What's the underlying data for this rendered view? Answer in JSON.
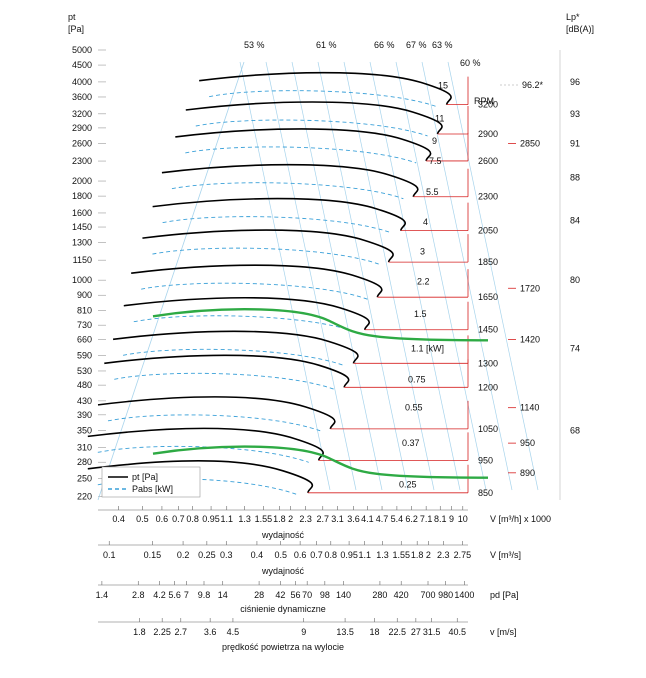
{
  "chart_data": {
    "type": "line",
    "title": "",
    "left_axis": {
      "unit_line1": "pt",
      "unit_line2": "[Pa]",
      "ticks": [
        "5000",
        "4500",
        "4000",
        "3600",
        "3200",
        "2900",
        "2600",
        "2300",
        "2000",
        "1800",
        "1600",
        "1450",
        "1300",
        "1150",
        "1000",
        "900",
        "810",
        "730",
        "660",
        "590",
        "530",
        "480",
        "430",
        "390",
        "350",
        "310",
        "280",
        "250",
        "220"
      ]
    },
    "right_axis": {
      "unit_line1": "Lp*",
      "unit_line2": "[dB(A)]",
      "ticks": [
        {
          "label": "96",
          "pt": 4000
        },
        {
          "label": "93",
          "pt": 3200
        },
        {
          "label": "91",
          "pt": 2600
        },
        {
          "label": "88",
          "pt": 2050
        },
        {
          "label": "84",
          "pt": 1520
        },
        {
          "label": "80",
          "pt": 1000
        },
        {
          "label": "74",
          "pt": 620
        },
        {
          "label": "68",
          "pt": 350
        }
      ]
    },
    "bottom_axis_flow_m3h": {
      "label": "V [m³/h] x 1000",
      "caption": "wydajność",
      "ticks": [
        "0.4",
        "0.5",
        "0.6",
        "0.7",
        "0.8",
        "0.95",
        "1.1",
        "1.3",
        "1.55",
        "1.8",
        "2",
        "2.3",
        "2.7",
        "3.1",
        "3.6",
        "4.1",
        "4.7",
        "5.4",
        "6.2",
        "7.1",
        "8.1",
        "9",
        "10"
      ]
    },
    "bottom_axis_flow_m3s": {
      "label": "V  [m³/s]",
      "caption": "wydajność",
      "ticks": [
        "0.1",
        "0.15",
        "0.2",
        "0.25",
        "0.3",
        "0.4",
        "0.5",
        "0.6",
        "0.7",
        "0.8",
        "0.95",
        "1.1",
        "1.3",
        "1.55",
        "1.8",
        "2",
        "2.3",
        "2.75"
      ]
    },
    "bottom_axis_dynamic_pressure": {
      "label": "pd  [Pa]",
      "caption": "ciśnienie dynamiczne",
      "ticks": [
        "1.4",
        "2.8",
        "4.2",
        "5.6",
        "7",
        "9.8",
        "14",
        "28",
        "42",
        "56",
        "70",
        "98",
        "140",
        "280",
        "420",
        "700",
        "980",
        "1400"
      ]
    },
    "bottom_axis_velocity": {
      "label": "v  [m/s]",
      "caption": "prędkość powietrza na wylocie",
      "ticks": [
        "1.8",
        "2.25",
        "2.7",
        "3.6",
        "4.5",
        "9",
        "13.5",
        "18",
        "22.5",
        "27",
        "31.5",
        "40.5"
      ]
    },
    "legend": [
      {
        "name": "pt [Pa]",
        "style": "solid",
        "color": "#000000"
      },
      {
        "name": "Pabs [kW]",
        "style": "dashed",
        "color": "#3aa0d8"
      }
    ],
    "rpm_title": "RPM",
    "series": [
      {
        "rpm": "3200",
        "pt_max": 4150,
        "q_start": 0.85,
        "q_end": 8.6
      },
      {
        "rpm": "2900",
        "pt_max": 3380,
        "q_start": 0.75,
        "q_end": 7.9
      },
      {
        "rpm": "2600",
        "pt_max": 2800,
        "q_start": 0.68,
        "q_end": 7.1
      },
      {
        "rpm": "2300",
        "pt_max": 2180,
        "q_start": 0.6,
        "q_end": 6.3
      },
      {
        "rpm": "2050",
        "pt_max": 1720,
        "q_start": 0.55,
        "q_end": 5.6
      },
      {
        "rpm": "1850",
        "pt_max": 1380,
        "q_start": 0.5,
        "q_end": 5.0
      },
      {
        "rpm": "1650",
        "pt_max": 1080,
        "q_start": 0.45,
        "q_end": 4.5
      },
      {
        "rpm": "1450",
        "pt_max": 860,
        "q_start": 0.42,
        "q_end": 4.0
      },
      {
        "rpm": "1300",
        "pt_max": 680,
        "q_start": 0.38,
        "q_end": 3.6
      },
      {
        "rpm": "1200",
        "pt_max": 575,
        "q_start": 0.35,
        "q_end": 3.3
      },
      {
        "rpm": "1050",
        "pt_max": 430,
        "q_start": 0.33,
        "q_end": 2.9
      },
      {
        "rpm": "950",
        "pt_max": 345,
        "q_start": 0.3,
        "q_end": 2.6
      },
      {
        "rpm": "850",
        "pt_max": 275,
        "q_start": 0.3,
        "q_end": 2.35
      }
    ],
    "highlight_curves": [
      {
        "rpm": "1420",
        "pt_max": 810
      },
      {
        "rpm": "890",
        "pt_max": 310
      }
    ],
    "power_labels": [
      {
        "label": "15",
        "pt": 3900
      },
      {
        "label": "11",
        "pt": 3100
      },
      {
        "label": "9",
        "pt": 2650
      },
      {
        "label": "7.5",
        "pt": 2300
      },
      {
        "label": "5.5",
        "pt": 1850
      },
      {
        "label": "4",
        "pt": 1500
      },
      {
        "label": "3",
        "pt": 1220
      },
      {
        "label": "2.2",
        "pt": 990
      },
      {
        "label": "1.5",
        "pt": 790
      },
      {
        "label": "1.1  [kW]",
        "pt": 620
      },
      {
        "label": "0.75",
        "pt": 500
      },
      {
        "label": "0.55",
        "pt": 410
      },
      {
        "label": "0.37",
        "pt": 320
      },
      {
        "label": "0.25",
        "pt": 240
      }
    ],
    "efficiency_labels": [
      "53 %",
      "61 %",
      "66 %",
      "67 %",
      "63 %",
      "60 %"
    ],
    "noise_marker": "96.2*",
    "side_labels": [
      {
        "label": "2850",
        "pt": 2600
      },
      {
        "label": "1720",
        "pt": 945
      },
      {
        "label": "1420",
        "pt": 660
      },
      {
        "label": "1140",
        "pt": 410
      },
      {
        "label": "950",
        "pt": 320
      },
      {
        "label": "890",
        "pt": 260
      }
    ]
  }
}
